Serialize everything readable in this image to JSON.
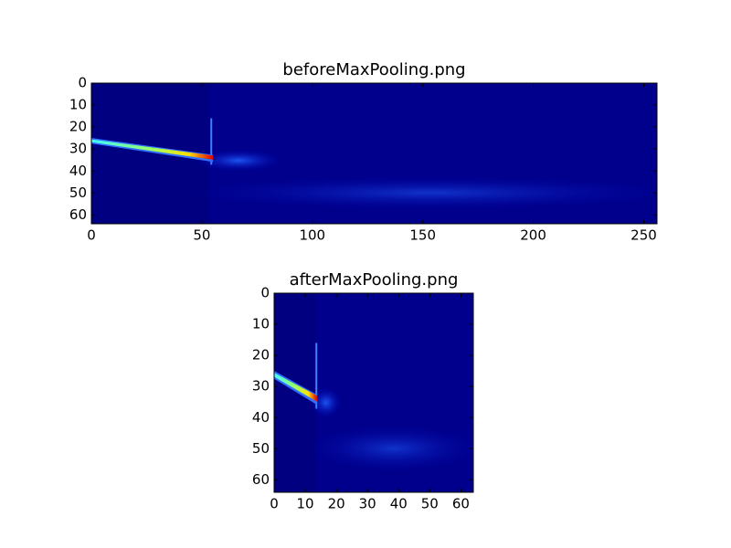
{
  "chart_data": [
    {
      "type": "image",
      "title": "beforeMaxPooling.png",
      "xlim": [
        0,
        256
      ],
      "ylim": [
        64,
        0
      ],
      "xticks": [
        0,
        50,
        100,
        150,
        200,
        250
      ],
      "yticks": [
        0,
        10,
        20,
        30,
        40,
        50,
        60
      ]
    },
    {
      "type": "image",
      "title": "afterMaxPooling.png",
      "xlim": [
        0,
        64
      ],
      "ylim": [
        64,
        0
      ],
      "xticks": [
        0,
        10,
        20,
        30,
        40,
        50,
        60
      ],
      "yticks": [
        0,
        10,
        20,
        30,
        40,
        50,
        60
      ]
    }
  ]
}
